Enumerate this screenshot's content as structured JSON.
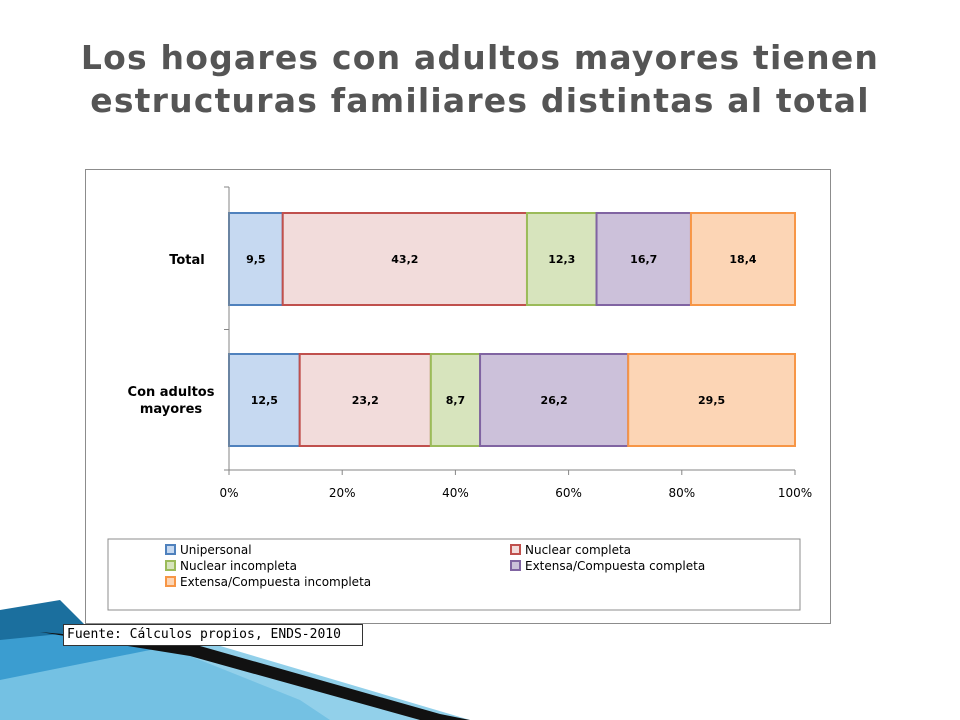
{
  "title": "Los hogares con adultos mayores tienen estructuras familiares distintas al total",
  "source": "Fuente: Cálculos propios, ENDS-2010",
  "chart_data": {
    "type": "bar",
    "orientation": "horizontal",
    "stacked": "percent",
    "categories": [
      "Total",
      "Con adultos mayores"
    ],
    "series": [
      {
        "name": "Unipersonal",
        "values": [
          9.5,
          12.5
        ],
        "labels": [
          "9,5",
          "12,5"
        ],
        "fill": "#c6d9f1",
        "stroke": "#4f81bd"
      },
      {
        "name": "Nuclear completa",
        "values": [
          43.2,
          23.2
        ],
        "labels": [
          "43,2",
          "23,2"
        ],
        "fill": "#f2dcdb",
        "stroke": "#c0504d"
      },
      {
        "name": "Nuclear incompleta",
        "values": [
          12.3,
          8.7
        ],
        "labels": [
          "12,3",
          "8,7"
        ],
        "fill": "#d7e4bd",
        "stroke": "#9bbb59"
      },
      {
        "name": "Extensa/Compuesta completa",
        "values": [
          16.7,
          26.2
        ],
        "labels": [
          "16,7",
          "26,2"
        ],
        "fill": "#ccc1da",
        "stroke": "#8064a2"
      },
      {
        "name": "Extensa/Compuesta incompleta",
        "values": [
          18.4,
          29.5
        ],
        "labels": [
          "18,4",
          "29,5"
        ],
        "fill": "#fcd5b5",
        "stroke": "#f79646"
      }
    ],
    "xlim": [
      0,
      100
    ],
    "xticks": [
      "0%",
      "20%",
      "40%",
      "60%",
      "80%",
      "100%"
    ],
    "grid": false,
    "legend": "bottom"
  },
  "colors": {
    "title": "#555555",
    "frame": "#8c8c8c",
    "deco_blue": "#1f7fb0",
    "deco_light": "#7fc8e6"
  }
}
